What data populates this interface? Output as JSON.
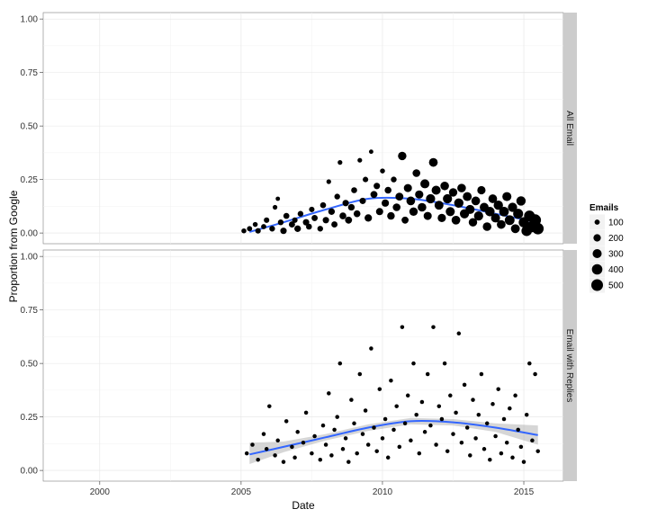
{
  "chart_data": {
    "type": "scatter",
    "xlabel": "Date",
    "ylabel": "Proportion from Google",
    "x_domain": [
      1998,
      2016.4
    ],
    "y_domain": [
      -0.05,
      1.03
    ],
    "x_ticks": [
      {
        "value": 2000,
        "label": "2000"
      },
      {
        "value": 2005,
        "label": "2005"
      },
      {
        "value": 2010,
        "label": "2010"
      },
      {
        "value": 2015,
        "label": "2015"
      }
    ],
    "y_ticks": [
      {
        "value": 0,
        "label": "0.00"
      },
      {
        "value": 0.25,
        "label": "0.25"
      },
      {
        "value": 0.5,
        "label": "0.50"
      },
      {
        "value": 0.75,
        "label": "0.75"
      },
      {
        "value": 1,
        "label": "1.00"
      }
    ],
    "grid": true,
    "legend": {
      "title": "Emails",
      "position": "right",
      "entries": [
        {
          "label": "100",
          "value": 100
        },
        {
          "label": "200",
          "value": 200
        },
        {
          "label": "300",
          "value": 300
        },
        {
          "label": "400",
          "value": 400
        },
        {
          "label": "500",
          "value": 500
        }
      ]
    },
    "panels": [
      {
        "strip": "All Email",
        "smooth": [
          [
            2005.3,
            0.005
          ],
          [
            2006.5,
            0.05
          ],
          [
            2008,
            0.11
          ],
          [
            2009.5,
            0.16
          ],
          [
            2011,
            0.16
          ],
          [
            2012.5,
            0.13
          ],
          [
            2014,
            0.09
          ],
          [
            2015.5,
            0.05
          ]
        ],
        "smooth_band": [],
        "points": [
          [
            2005.1,
            0.01,
            90
          ],
          [
            2005.3,
            0.02,
            100
          ],
          [
            2005.5,
            0.04,
            90
          ],
          [
            2005.6,
            0.01,
            110
          ],
          [
            2005.8,
            0.03,
            100
          ],
          [
            2005.9,
            0.06,
            110
          ],
          [
            2006.1,
            0.02,
            120
          ],
          [
            2006.2,
            0.12,
            80
          ],
          [
            2006.3,
            0.16,
            70
          ],
          [
            2006.4,
            0.05,
            120
          ],
          [
            2006.5,
            0.01,
            150
          ],
          [
            2006.6,
            0.08,
            130
          ],
          [
            2006.8,
            0.04,
            140
          ],
          [
            2006.9,
            0.06,
            110
          ],
          [
            2007.0,
            0.02,
            160
          ],
          [
            2007.1,
            0.09,
            120
          ],
          [
            2007.3,
            0.05,
            150
          ],
          [
            2007.4,
            0.03,
            130
          ],
          [
            2007.5,
            0.11,
            110
          ],
          [
            2007.6,
            0.07,
            140
          ],
          [
            2007.8,
            0.02,
            120
          ],
          [
            2007.9,
            0.13,
            130
          ],
          [
            2008.0,
            0.06,
            150
          ],
          [
            2008.1,
            0.24,
            80
          ],
          [
            2008.2,
            0.1,
            160
          ],
          [
            2008.3,
            0.04,
            140
          ],
          [
            2008.4,
            0.17,
            120
          ],
          [
            2008.5,
            0.33,
            80
          ],
          [
            2008.6,
            0.08,
            170
          ],
          [
            2008.7,
            0.14,
            150
          ],
          [
            2008.8,
            0.06,
            180
          ],
          [
            2008.9,
            0.12,
            160
          ],
          [
            2009.0,
            0.2,
            130
          ],
          [
            2009.1,
            0.09,
            170
          ],
          [
            2009.2,
            0.34,
            80
          ],
          [
            2009.3,
            0.15,
            150
          ],
          [
            2009.4,
            0.25,
            110
          ],
          [
            2009.5,
            0.07,
            200
          ],
          [
            2009.6,
            0.38,
            70
          ],
          [
            2009.7,
            0.18,
            180
          ],
          [
            2009.8,
            0.22,
            150
          ],
          [
            2009.9,
            0.1,
            190
          ],
          [
            2010.0,
            0.29,
            90
          ],
          [
            2010.1,
            0.14,
            200
          ],
          [
            2010.2,
            0.2,
            170
          ],
          [
            2010.3,
            0.08,
            210
          ],
          [
            2010.4,
            0.25,
            120
          ],
          [
            2010.5,
            0.12,
            220
          ],
          [
            2010.6,
            0.17,
            230
          ],
          [
            2010.7,
            0.36,
            260
          ],
          [
            2010.8,
            0.06,
            180
          ],
          [
            2010.9,
            0.21,
            240
          ],
          [
            2011.0,
            0.15,
            280
          ],
          [
            2011.1,
            0.1,
            260
          ],
          [
            2011.2,
            0.28,
            220
          ],
          [
            2011.3,
            0.18,
            250
          ],
          [
            2011.4,
            0.12,
            270
          ],
          [
            2011.5,
            0.23,
            300
          ],
          [
            2011.6,
            0.08,
            240
          ],
          [
            2011.7,
            0.16,
            310
          ],
          [
            2011.8,
            0.33,
            280
          ],
          [
            2011.9,
            0.2,
            300
          ],
          [
            2012.0,
            0.13,
            290
          ],
          [
            2012.1,
            0.07,
            250
          ],
          [
            2012.2,
            0.22,
            270
          ],
          [
            2012.3,
            0.16,
            310
          ],
          [
            2012.4,
            0.1,
            300
          ],
          [
            2012.5,
            0.19,
            260
          ],
          [
            2012.6,
            0.06,
            280
          ],
          [
            2012.7,
            0.14,
            320
          ],
          [
            2012.8,
            0.21,
            270
          ],
          [
            2012.9,
            0.09,
            310
          ],
          [
            2013.0,
            0.17,
            290
          ],
          [
            2013.1,
            0.11,
            300
          ],
          [
            2013.2,
            0.05,
            260
          ],
          [
            2013.3,
            0.15,
            280
          ],
          [
            2013.4,
            0.08,
            310
          ],
          [
            2013.5,
            0.2,
            250
          ],
          [
            2013.6,
            0.12,
            290
          ],
          [
            2013.7,
            0.03,
            270
          ],
          [
            2013.8,
            0.1,
            330
          ],
          [
            2013.9,
            0.16,
            280
          ],
          [
            2014.0,
            0.07,
            300
          ],
          [
            2014.1,
            0.13,
            320
          ],
          [
            2014.2,
            0.04,
            280
          ],
          [
            2014.3,
            0.1,
            340
          ],
          [
            2014.4,
            0.17,
            300
          ],
          [
            2014.5,
            0.06,
            350
          ],
          [
            2014.6,
            0.12,
            310
          ],
          [
            2014.7,
            0.02,
            290
          ],
          [
            2014.8,
            0.09,
            360
          ],
          [
            2014.9,
            0.15,
            320
          ],
          [
            2015.0,
            0.05,
            380
          ],
          [
            2015.1,
            0.01,
            400
          ],
          [
            2015.2,
            0.08,
            420
          ],
          [
            2015.3,
            0.03,
            460
          ],
          [
            2015.4,
            0.06,
            500
          ],
          [
            2015.5,
            0.02,
            480
          ]
        ]
      },
      {
        "strip": "Email with Replies",
        "smooth": [
          [
            2005.3,
            0.075
          ],
          [
            2006.5,
            0.11
          ],
          [
            2008,
            0.155
          ],
          [
            2009.5,
            0.2
          ],
          [
            2011,
            0.23
          ],
          [
            2012.5,
            0.225
          ],
          [
            2014,
            0.2
          ],
          [
            2015.5,
            0.165
          ]
        ],
        "smooth_band": [
          [
            2005.3,
            0.03,
            0.13
          ],
          [
            2006.5,
            0.085,
            0.135
          ],
          [
            2008,
            0.14,
            0.17
          ],
          [
            2009.5,
            0.185,
            0.215
          ],
          [
            2011,
            0.215,
            0.245
          ],
          [
            2012.5,
            0.21,
            0.24
          ],
          [
            2014,
            0.18,
            0.22
          ],
          [
            2015.5,
            0.12,
            0.21
          ]
        ],
        "points": [
          [
            2005.2,
            0.08,
            60
          ],
          [
            2005.4,
            0.12,
            60
          ],
          [
            2005.6,
            0.05,
            60
          ],
          [
            2005.8,
            0.17,
            60
          ],
          [
            2005.9,
            0.1,
            60
          ],
          [
            2006.0,
            0.3,
            60
          ],
          [
            2006.2,
            0.07,
            60
          ],
          [
            2006.3,
            0.14,
            60
          ],
          [
            2006.5,
            0.04,
            60
          ],
          [
            2006.6,
            0.23,
            60
          ],
          [
            2006.8,
            0.11,
            60
          ],
          [
            2006.9,
            0.06,
            60
          ],
          [
            2007.0,
            0.18,
            60
          ],
          [
            2007.2,
            0.13,
            60
          ],
          [
            2007.3,
            0.27,
            60
          ],
          [
            2007.5,
            0.08,
            60
          ],
          [
            2007.6,
            0.16,
            60
          ],
          [
            2007.8,
            0.05,
            60
          ],
          [
            2007.9,
            0.21,
            60
          ],
          [
            2008.0,
            0.12,
            60
          ],
          [
            2008.1,
            0.36,
            60
          ],
          [
            2008.2,
            0.07,
            60
          ],
          [
            2008.3,
            0.19,
            60
          ],
          [
            2008.4,
            0.25,
            60
          ],
          [
            2008.5,
            0.5,
            60
          ],
          [
            2008.6,
            0.1,
            60
          ],
          [
            2008.7,
            0.15,
            60
          ],
          [
            2008.8,
            0.04,
            60
          ],
          [
            2008.9,
            0.33,
            60
          ],
          [
            2009.0,
            0.22,
            60
          ],
          [
            2009.1,
            0.08,
            60
          ],
          [
            2009.2,
            0.45,
            60
          ],
          [
            2009.3,
            0.17,
            60
          ],
          [
            2009.4,
            0.28,
            60
          ],
          [
            2009.5,
            0.12,
            60
          ],
          [
            2009.6,
            0.57,
            60
          ],
          [
            2009.7,
            0.2,
            60
          ],
          [
            2009.8,
            0.09,
            60
          ],
          [
            2009.9,
            0.38,
            60
          ],
          [
            2010.0,
            0.15,
            60
          ],
          [
            2010.1,
            0.24,
            60
          ],
          [
            2010.2,
            0.06,
            60
          ],
          [
            2010.3,
            0.42,
            60
          ],
          [
            2010.4,
            0.19,
            60
          ],
          [
            2010.5,
            0.3,
            60
          ],
          [
            2010.6,
            0.11,
            60
          ],
          [
            2010.7,
            0.67,
            60
          ],
          [
            2010.8,
            0.22,
            60
          ],
          [
            2010.9,
            0.35,
            60
          ],
          [
            2011.0,
            0.14,
            60
          ],
          [
            2011.1,
            0.5,
            60
          ],
          [
            2011.2,
            0.26,
            60
          ],
          [
            2011.3,
            0.08,
            60
          ],
          [
            2011.4,
            0.32,
            60
          ],
          [
            2011.5,
            0.18,
            60
          ],
          [
            2011.6,
            0.45,
            60
          ],
          [
            2011.7,
            0.21,
            60
          ],
          [
            2011.8,
            0.67,
            60
          ],
          [
            2011.9,
            0.12,
            60
          ],
          [
            2012.0,
            0.3,
            60
          ],
          [
            2012.1,
            0.24,
            60
          ],
          [
            2012.2,
            0.5,
            60
          ],
          [
            2012.3,
            0.09,
            60
          ],
          [
            2012.4,
            0.35,
            60
          ],
          [
            2012.5,
            0.17,
            60
          ],
          [
            2012.6,
            0.27,
            60
          ],
          [
            2012.7,
            0.64,
            60
          ],
          [
            2012.8,
            0.13,
            60
          ],
          [
            2012.9,
            0.4,
            60
          ],
          [
            2013.0,
            0.2,
            60
          ],
          [
            2013.1,
            0.07,
            60
          ],
          [
            2013.2,
            0.33,
            60
          ],
          [
            2013.3,
            0.15,
            60
          ],
          [
            2013.4,
            0.26,
            60
          ],
          [
            2013.5,
            0.45,
            60
          ],
          [
            2013.6,
            0.1,
            60
          ],
          [
            2013.7,
            0.22,
            60
          ],
          [
            2013.8,
            0.05,
            60
          ],
          [
            2013.9,
            0.31,
            60
          ],
          [
            2014.0,
            0.16,
            60
          ],
          [
            2014.1,
            0.38,
            60
          ],
          [
            2014.2,
            0.08,
            60
          ],
          [
            2014.3,
            0.24,
            60
          ],
          [
            2014.4,
            0.13,
            60
          ],
          [
            2014.5,
            0.29,
            60
          ],
          [
            2014.6,
            0.06,
            60
          ],
          [
            2014.7,
            0.35,
            60
          ],
          [
            2014.8,
            0.19,
            60
          ],
          [
            2014.9,
            0.11,
            60
          ],
          [
            2015.0,
            0.04,
            60
          ],
          [
            2015.1,
            0.26,
            60
          ],
          [
            2015.2,
            0.5,
            60
          ],
          [
            2015.3,
            0.14,
            60
          ],
          [
            2015.4,
            0.45,
            60
          ],
          [
            2015.5,
            0.09,
            60
          ]
        ]
      }
    ]
  }
}
